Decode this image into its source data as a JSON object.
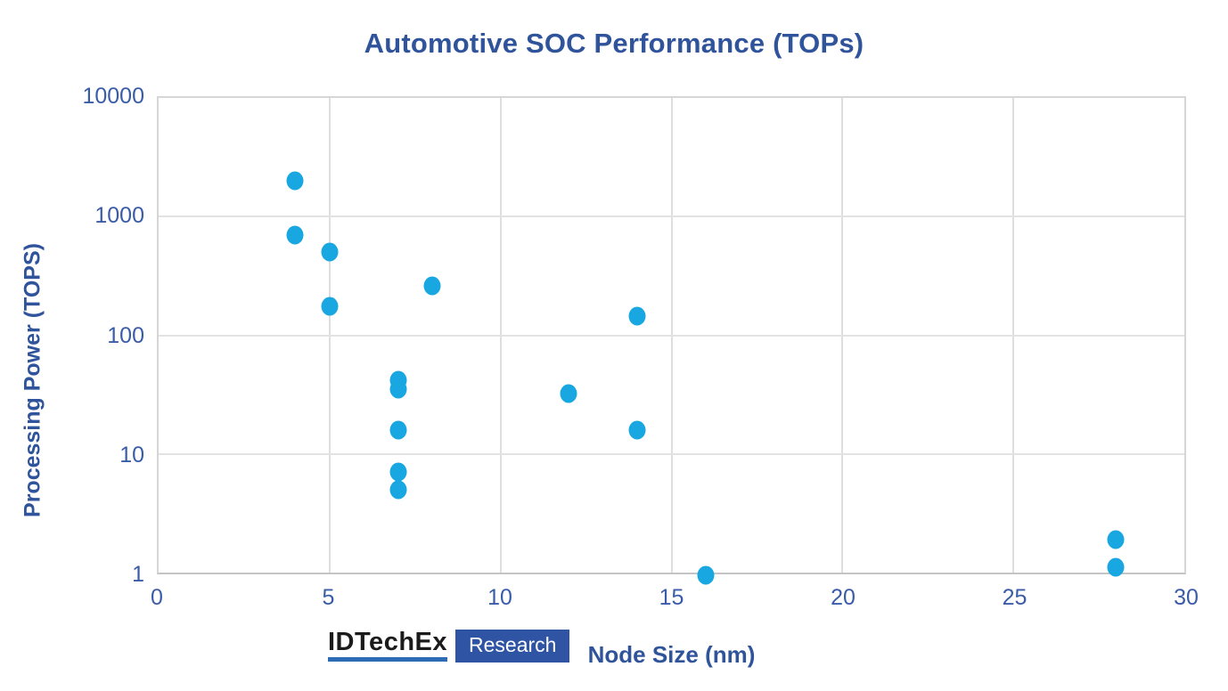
{
  "title": "Automotive SOC Performance (TOPs)",
  "chart_data": {
    "type": "scatter",
    "title": "Automotive SOC Performance (TOPs)",
    "xlabel": "Node Size (nm)",
    "ylabel": "Processing Power (TOPS)",
    "x_ticks": [
      0,
      5,
      10,
      15,
      20,
      25,
      30
    ],
    "y_ticks": [
      10000,
      1000,
      100,
      10,
      1
    ],
    "xlim": [
      0,
      30
    ],
    "ylim": [
      1,
      10000
    ],
    "y_scale": "log",
    "grid": true,
    "legend": false,
    "marker_color": "#18a7e0",
    "points": [
      {
        "x": 4,
        "y": 2000
      },
      {
        "x": 4,
        "y": 700
      },
      {
        "x": 5,
        "y": 500
      },
      {
        "x": 5,
        "y": 175
      },
      {
        "x": 8,
        "y": 260
      },
      {
        "x": 14,
        "y": 144
      },
      {
        "x": 7,
        "y": 42
      },
      {
        "x": 7,
        "y": 35
      },
      {
        "x": 12,
        "y": 32
      },
      {
        "x": 7,
        "y": 16
      },
      {
        "x": 14,
        "y": 16
      },
      {
        "x": 7,
        "y": 7
      },
      {
        "x": 7,
        "y": 5
      },
      {
        "x": 16,
        "y": 0.95
      },
      {
        "x": 28,
        "y": 1.9
      },
      {
        "x": 28,
        "y": 1.1
      }
    ]
  },
  "logo": {
    "brand": "IDTechEx",
    "division": "Research"
  },
  "colors": {
    "title_blue": "#2f549b",
    "tick_blue": "#3a5ca8",
    "marker": "#18a7e0",
    "grid": "#dedede",
    "logo_bar": "#2d6bb5",
    "logo_box": "#2e54a3"
  }
}
